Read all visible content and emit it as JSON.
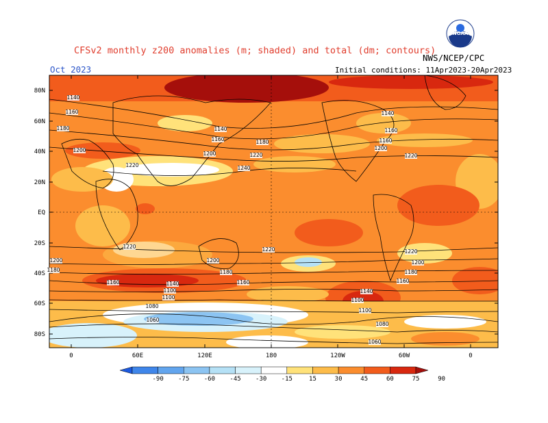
{
  "header": {
    "title": "CFSv2 monthly z200 anomalies (m; shaded) and total (dm; contours)",
    "month": "Oct 2023",
    "agency": "NWS/NCEP/CPC",
    "initial_conditions": "Initial conditions: 11Apr2023-20Apr2023",
    "logo_text": "NOAA"
  },
  "map": {
    "lat_labels": [
      "80N",
      "60N",
      "40N",
      "20N",
      "EQ",
      "20S",
      "40S",
      "60S",
      "80S"
    ],
    "lon_labels": [
      "0",
      "60E",
      "120E",
      "180",
      "120W",
      "60W",
      "0"
    ],
    "contour_labels": [
      "1140",
      "1160",
      "1180",
      "1200",
      "1220",
      "1240",
      "1100",
      "1080",
      "1060"
    ]
  },
  "colorbar": {
    "levels": [
      "-90",
      "-75",
      "-60",
      "-45",
      "-30",
      "-15",
      "15",
      "30",
      "45",
      "60",
      "75",
      "90"
    ],
    "colors": [
      "#1c5ae0",
      "#3f86ea",
      "#62a5ee",
      "#8cc4f2",
      "#b5e1f6",
      "#d8f2fb",
      "#ffffff",
      "#ffe27a",
      "#fdbc4a",
      "#fb8d2e",
      "#f25c1c",
      "#d8280f",
      "#a50f0b"
    ]
  }
}
